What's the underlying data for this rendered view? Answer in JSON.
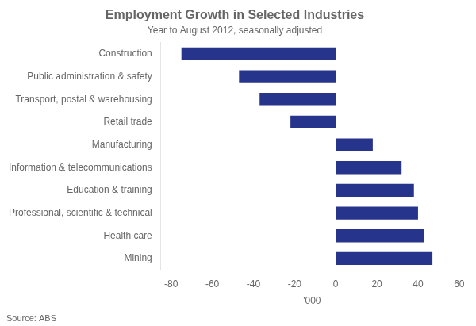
{
  "chart_data": {
    "type": "bar",
    "orientation": "horizontal",
    "title": "Employment Growth in Selected Industries",
    "subtitle": "Year to August 2012, seasonally adjusted",
    "source": "Source: ABS",
    "xlabel": "'000",
    "categories": [
      "Construction",
      "Public administration & safety",
      "Transport, postal & warehousing",
      "Retail trade",
      "Manufacturing",
      "Information & telecommunications",
      "Education & training",
      "Professional, scientific & technical",
      "Health care",
      "Mining"
    ],
    "values": [
      -75,
      -47,
      -37,
      -22,
      18,
      32,
      38,
      40,
      43,
      47
    ],
    "color": "#27348b",
    "xlim": [
      -85,
      62
    ],
    "xticks": [
      -80,
      -60,
      -40,
      -20,
      0,
      20,
      40,
      60
    ],
    "grid": false
  }
}
